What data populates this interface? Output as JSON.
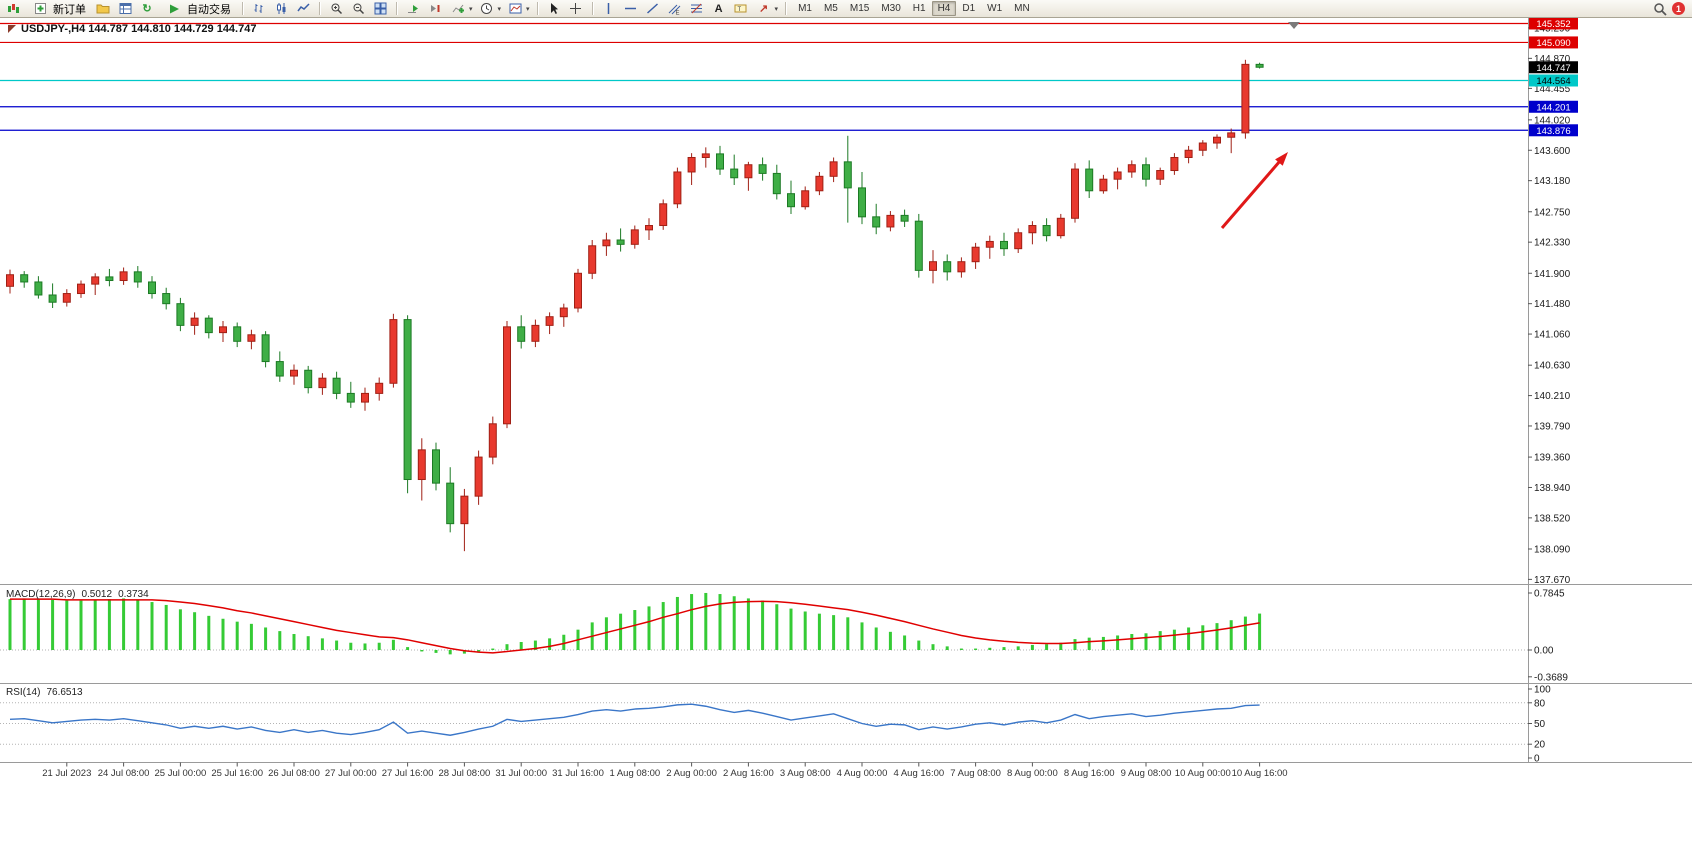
{
  "toolbar": {
    "items": [
      {
        "type": "icon",
        "name": "new-chart-icon"
      },
      {
        "type": "button",
        "name": "new-order-button",
        "icon": "new-order-icon",
        "label": "新订单"
      },
      {
        "type": "icon",
        "name": "profiles-icon"
      },
      {
        "type": "icon",
        "name": "data-window-icon"
      },
      {
        "type": "icon",
        "name": "refresh-icon"
      },
      {
        "type": "button",
        "name": "auto-trading-button",
        "icon": "auto-trading-icon",
        "label": "自动交易"
      },
      {
        "type": "sep"
      },
      {
        "type": "icon",
        "name": "bar-chart-icon"
      },
      {
        "type": "icon",
        "name": "candlestick-chart-icon"
      },
      {
        "type": "icon",
        "name": "line-chart-icon"
      },
      {
        "type": "sep"
      },
      {
        "type": "icon",
        "name": "zoom-in-icon"
      },
      {
        "type": "icon",
        "name": "zoom-out-icon"
      },
      {
        "type": "icon",
        "name": "tile-windows-icon"
      },
      {
        "type": "sep"
      },
      {
        "type": "icon",
        "name": "auto-scroll-icon"
      },
      {
        "type": "icon",
        "name": "chart-shift-icon"
      },
      {
        "type": "dropdown",
        "name": "indicators-menu",
        "icon": "indicators-icon"
      },
      {
        "type": "dropdown",
        "name": "periods-menu",
        "icon": "clock-icon"
      },
      {
        "type": "dropdown",
        "name": "templates-menu",
        "icon": "template-icon"
      },
      {
        "type": "sep"
      },
      {
        "type": "icon",
        "name": "cursor-icon"
      },
      {
        "type": "icon",
        "name": "crosshair-icon"
      },
      {
        "type": "sep"
      },
      {
        "type": "icon",
        "name": "vertical-line-icon"
      },
      {
        "type": "icon",
        "name": "horizontal-line-icon"
      },
      {
        "type": "icon",
        "name": "trendline-icon"
      },
      {
        "type": "icon",
        "name": "equidistant-channel-icon"
      },
      {
        "type": "icon",
        "name": "fibonacci-icon"
      },
      {
        "type": "icon",
        "name": "text-icon"
      },
      {
        "type": "icon",
        "name": "text-label-icon"
      },
      {
        "type": "dropdown",
        "name": "arrows-menu",
        "icon": "arrow-shapes-icon"
      },
      {
        "type": "sep"
      },
      {
        "type": "timeframes"
      },
      {
        "type": "spacer"
      },
      {
        "type": "icon",
        "name": "search-icon"
      },
      {
        "type": "badge",
        "name": "notification-badge"
      }
    ],
    "timeframes": [
      "M1",
      "M5",
      "M15",
      "M30",
      "H1",
      "H4",
      "D1",
      "W1",
      "MN"
    ],
    "active_timeframe": "H4",
    "notification_count": "1"
  },
  "chart_data": [
    {
      "type": "candlestick",
      "symbol": "USDJPY-",
      "period": "H4",
      "header": "USDJPY-,H4 144.787 144.810 144.729 144.747",
      "open": "144.787",
      "high": "144.810",
      "low": "144.729",
      "close": "144.747",
      "ylim": [
        137.62,
        145.4
      ],
      "up_color": "#e8392e",
      "up_border": "#a02015",
      "down_color": "#3fae46",
      "down_border": "#1c7a24",
      "arrow_color": "#e01818",
      "candles": [
        [
          141.72,
          141.95,
          141.62,
          141.88
        ],
        [
          141.88,
          141.93,
          141.7,
          141.78
        ],
        [
          141.78,
          141.86,
          141.55,
          141.6
        ],
        [
          141.6,
          141.76,
          141.42,
          141.5
        ],
        [
          141.5,
          141.68,
          141.44,
          141.62
        ],
        [
          141.62,
          141.8,
          141.56,
          141.75
        ],
        [
          141.75,
          141.9,
          141.6,
          141.85
        ],
        [
          141.85,
          141.96,
          141.72,
          141.8
        ],
        [
          141.8,
          141.98,
          141.74,
          141.92
        ],
        [
          141.92,
          142.0,
          141.7,
          141.78
        ],
        [
          141.78,
          141.86,
          141.55,
          141.62
        ],
        [
          141.62,
          141.7,
          141.4,
          141.48
        ],
        [
          141.48,
          141.56,
          141.1,
          141.18
        ],
        [
          141.18,
          141.36,
          141.05,
          141.28
        ],
        [
          141.28,
          141.32,
          141.0,
          141.08
        ],
        [
          141.08,
          141.24,
          140.95,
          141.16
        ],
        [
          141.16,
          141.22,
          140.88,
          140.96
        ],
        [
          140.96,
          141.12,
          140.85,
          141.05
        ],
        [
          141.05,
          141.1,
          140.6,
          140.68
        ],
        [
          140.68,
          140.82,
          140.4,
          140.48
        ],
        [
          140.48,
          140.64,
          140.36,
          140.56
        ],
        [
          140.56,
          140.62,
          140.24,
          140.32
        ],
        [
          140.32,
          140.52,
          140.22,
          140.45
        ],
        [
          140.45,
          140.54,
          140.16,
          140.24
        ],
        [
          140.24,
          140.4,
          140.04,
          140.12
        ],
        [
          140.12,
          140.32,
          140.0,
          140.24
        ],
        [
          140.24,
          140.46,
          140.14,
          140.38
        ],
        [
          140.38,
          141.34,
          140.32,
          141.26
        ],
        [
          141.26,
          141.32,
          138.86,
          139.05
        ],
        [
          139.05,
          139.62,
          138.76,
          139.46
        ],
        [
          139.46,
          139.56,
          138.9,
          139.0
        ],
        [
          139.0,
          139.22,
          138.32,
          138.44
        ],
        [
          138.44,
          138.92,
          138.06,
          138.82
        ],
        [
          138.82,
          139.45,
          138.7,
          139.36
        ],
        [
          139.36,
          139.92,
          139.26,
          139.82
        ],
        [
          139.82,
          141.24,
          139.76,
          141.16
        ],
        [
          141.16,
          141.32,
          140.86,
          140.96
        ],
        [
          140.96,
          141.26,
          140.88,
          141.18
        ],
        [
          141.18,
          141.36,
          141.06,
          141.3
        ],
        [
          141.3,
          141.48,
          141.16,
          141.42
        ],
        [
          141.42,
          141.96,
          141.36,
          141.9
        ],
        [
          141.9,
          142.36,
          141.82,
          142.28
        ],
        [
          142.28,
          142.46,
          142.14,
          142.36
        ],
        [
          142.36,
          142.52,
          142.2,
          142.3
        ],
        [
          142.3,
          142.56,
          142.24,
          142.5
        ],
        [
          142.5,
          142.66,
          142.36,
          142.56
        ],
        [
          142.56,
          142.92,
          142.5,
          142.86
        ],
        [
          142.86,
          143.36,
          142.8,
          143.3
        ],
        [
          143.3,
          143.56,
          143.12,
          143.5
        ],
        [
          143.5,
          143.64,
          143.36,
          143.55
        ],
        [
          143.55,
          143.66,
          143.26,
          143.34
        ],
        [
          143.34,
          143.54,
          143.12,
          143.22
        ],
        [
          143.22,
          143.44,
          143.04,
          143.4
        ],
        [
          143.4,
          143.5,
          143.18,
          143.28
        ],
        [
          143.28,
          143.4,
          142.92,
          143.0
        ],
        [
          143.0,
          143.18,
          142.72,
          142.82
        ],
        [
          142.82,
          143.1,
          142.78,
          143.04
        ],
        [
          143.04,
          143.3,
          142.98,
          143.24
        ],
        [
          143.24,
          143.5,
          143.16,
          143.44
        ],
        [
          143.44,
          143.8,
          142.6,
          143.08
        ],
        [
          143.08,
          143.3,
          142.58,
          142.68
        ],
        [
          142.68,
          142.86,
          142.44,
          142.54
        ],
        [
          142.54,
          142.76,
          142.48,
          142.7
        ],
        [
          142.7,
          142.78,
          142.54,
          142.62
        ],
        [
          142.62,
          142.72,
          141.84,
          141.94
        ],
        [
          141.94,
          142.22,
          141.76,
          142.06
        ],
        [
          142.06,
          142.16,
          141.8,
          141.92
        ],
        [
          141.92,
          142.12,
          141.84,
          142.06
        ],
        [
          142.06,
          142.32,
          141.96,
          142.26
        ],
        [
          142.26,
          142.42,
          142.1,
          142.34
        ],
        [
          142.34,
          142.46,
          142.14,
          142.24
        ],
        [
          142.24,
          142.52,
          142.18,
          142.46
        ],
        [
          142.46,
          142.62,
          142.3,
          142.56
        ],
        [
          142.56,
          142.66,
          142.34,
          142.42
        ],
        [
          142.42,
          142.72,
          142.38,
          142.66
        ],
        [
          142.66,
          143.42,
          142.6,
          143.34
        ],
        [
          143.34,
          143.46,
          142.94,
          143.04
        ],
        [
          143.04,
          143.26,
          143.0,
          143.2
        ],
        [
          143.2,
          143.36,
          143.06,
          143.3
        ],
        [
          143.3,
          143.46,
          143.22,
          143.4
        ],
        [
          143.4,
          143.5,
          143.1,
          143.2
        ],
        [
          143.2,
          143.36,
          143.12,
          143.32
        ],
        [
          143.32,
          143.56,
          143.26,
          143.5
        ],
        [
          143.5,
          143.66,
          143.42,
          143.6
        ],
        [
          143.6,
          143.74,
          143.52,
          143.7
        ],
        [
          143.7,
          143.82,
          143.62,
          143.78
        ],
        [
          143.78,
          143.9,
          143.56,
          143.84
        ],
        [
          143.84,
          144.85,
          143.76,
          144.787
        ],
        [
          144.787,
          144.81,
          144.729,
          144.747
        ]
      ],
      "levels": [
        {
          "price": 145.352,
          "label": "145.352",
          "color": "#dd0000",
          "text_color": "#ffffff"
        },
        {
          "price": 145.09,
          "label": "145.090",
          "color": "#dd0000",
          "text_color": "#ffffff"
        },
        {
          "price": 144.564,
          "label": "144.564",
          "color": "#00c8c8",
          "text_color": "#000000"
        },
        {
          "price": 144.201,
          "label": "144.201",
          "color": "#0000cc",
          "text_color": "#ffffff"
        },
        {
          "price": 143.876,
          "label": "143.876",
          "color": "#0000cc",
          "text_color": "#ffffff"
        }
      ],
      "current_price": {
        "price": 144.747,
        "label": "144.747",
        "color": "#000000",
        "text_color": "#ffffff"
      },
      "y_ticks": [
        "145.290",
        "144.870",
        "144.455",
        "144.020",
        "143.600",
        "143.180",
        "142.750",
        "142.330",
        "141.900",
        "141.480",
        "141.060",
        "140.630",
        "140.210",
        "139.790",
        "139.360",
        "138.940",
        "138.520",
        "138.090",
        "137.670"
      ],
      "x_labels": [
        "21 Jul 2023",
        "24 Jul 08:00",
        "25 Jul 00:00",
        "25 Jul 16:00",
        "26 Jul 08:00",
        "27 Jul 00:00",
        "27 Jul 16:00",
        "28 Jul 08:00",
        "31 Jul 00:00",
        "31 Jul 16:00",
        "1 Aug 08:00",
        "2 Aug 00:00",
        "2 Aug 16:00",
        "3 Aug 08:00",
        "4 Aug 00:00",
        "4 Aug 16:00",
        "7 Aug 08:00",
        "8 Aug 00:00",
        "8 Aug 16:00",
        "9 Aug 08:00",
        "10 Aug 00:00",
        "10 Aug 16:00"
      ],
      "x_label_start": 4,
      "x_label_step": 4
    },
    {
      "type": "bar",
      "label": "MACD(12,26,9)",
      "value_main": "0.5012",
      "value_signal": "0.3734",
      "hist_color": "#35cb35",
      "signal_color": "#e00000",
      "y_ticks": [
        "0.7845",
        "0.00",
        "-0.3689"
      ],
      "histogram": [
        0.7,
        0.71,
        0.7,
        0.69,
        0.68,
        0.68,
        0.69,
        0.7,
        0.71,
        0.69,
        0.66,
        0.62,
        0.56,
        0.52,
        0.47,
        0.43,
        0.39,
        0.36,
        0.31,
        0.26,
        0.22,
        0.19,
        0.16,
        0.13,
        0.1,
        0.09,
        0.1,
        0.14,
        0.04,
        -0.02,
        -0.04,
        -0.06,
        -0.05,
        -0.02,
        0.02,
        0.08,
        0.11,
        0.13,
        0.16,
        0.21,
        0.28,
        0.38,
        0.45,
        0.5,
        0.55,
        0.6,
        0.66,
        0.73,
        0.77,
        0.785,
        0.77,
        0.74,
        0.71,
        0.68,
        0.63,
        0.57,
        0.53,
        0.5,
        0.48,
        0.45,
        0.38,
        0.31,
        0.25,
        0.2,
        0.13,
        0.08,
        0.05,
        0.02,
        0.02,
        0.03,
        0.04,
        0.05,
        0.07,
        0.08,
        0.1,
        0.15,
        0.17,
        0.18,
        0.2,
        0.22,
        0.23,
        0.26,
        0.28,
        0.31,
        0.34,
        0.37,
        0.41,
        0.46,
        0.5012
      ],
      "signal": [
        0.7,
        0.7,
        0.7,
        0.7,
        0.69,
        0.69,
        0.69,
        0.69,
        0.69,
        0.69,
        0.69,
        0.68,
        0.66,
        0.64,
        0.61,
        0.58,
        0.54,
        0.51,
        0.47,
        0.43,
        0.39,
        0.35,
        0.31,
        0.27,
        0.24,
        0.21,
        0.18,
        0.17,
        0.14,
        0.1,
        0.06,
        0.02,
        -0.01,
        -0.03,
        -0.04,
        -0.02,
        0.0,
        0.02,
        0.05,
        0.09,
        0.14,
        0.19,
        0.24,
        0.29,
        0.34,
        0.39,
        0.45,
        0.5,
        0.555,
        0.6,
        0.635,
        0.655,
        0.665,
        0.67,
        0.665,
        0.65,
        0.63,
        0.605,
        0.58,
        0.555,
        0.52,
        0.48,
        0.435,
        0.39,
        0.34,
        0.29,
        0.245,
        0.2,
        0.165,
        0.14,
        0.12,
        0.105,
        0.095,
        0.09,
        0.09,
        0.1,
        0.115,
        0.125,
        0.14,
        0.155,
        0.17,
        0.185,
        0.205,
        0.225,
        0.25,
        0.275,
        0.305,
        0.34,
        0.3734
      ]
    },
    {
      "type": "line",
      "label": "RSI(14)",
      "value": "76.6513",
      "line_color": "#3a76c8",
      "levels": [
        80,
        50,
        20
      ],
      "y_ticks": [
        "100",
        "80",
        "50",
        "20",
        "0"
      ],
      "values": [
        56,
        57,
        54,
        51,
        53,
        55,
        56,
        55,
        57,
        54,
        51,
        48,
        43,
        46,
        43,
        46,
        42,
        45,
        40,
        37,
        41,
        37,
        40,
        36,
        34,
        37,
        41,
        52,
        36,
        39,
        36,
        33,
        37,
        42,
        46,
        56,
        53,
        55,
        57,
        59,
        63,
        68,
        70,
        68,
        71,
        72,
        74,
        77,
        78,
        75,
        70,
        66,
        69,
        65,
        60,
        55,
        58,
        61,
        64,
        57,
        50,
        46,
        49,
        48,
        41,
        45,
        42,
        45,
        49,
        51,
        48,
        52,
        54,
        51,
        55,
        63,
        57,
        60,
        62,
        64,
        60,
        62,
        65,
        67,
        69,
        71,
        72,
        76,
        76.65
      ]
    }
  ]
}
